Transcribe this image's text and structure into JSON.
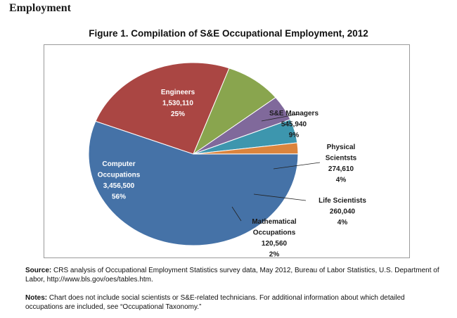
{
  "section_heading": "Employment",
  "source": {
    "label": "Source:",
    "text": "CRS analysis of Occupational Employment Statistics survey data, May 2012, Bureau of Labor Statistics, U.S. Department of Labor, http://www.bls.gov/oes/tables.htm."
  },
  "notes": {
    "label": "Notes:",
    "text": "Chart does not include social scientists or S&E-related technicians. For additional information about which detailed occupations are included, see “Occupational Taxonomy.”"
  },
  "chart_data": {
    "type": "pie",
    "title": "Figure 1. Compilation of S&E Occupational Employment, 2012",
    "slices": [
      {
        "label_lines": [
          "Engineers"
        ],
        "value": 1530110,
        "value_label": "1,530,110",
        "pct_label": "25%",
        "color": "#aa4643",
        "label_inside": true
      },
      {
        "label_lines": [
          "S&E Managers"
        ],
        "value": 545940,
        "value_label": "545,940",
        "pct_label": "9%",
        "color": "#89a54e",
        "label_inside": false
      },
      {
        "label_lines": [
          "Physical",
          "Scientsts"
        ],
        "value": 274610,
        "value_label": "274,610",
        "pct_label": "4%",
        "color": "#80699b",
        "label_inside": false
      },
      {
        "label_lines": [
          "Life Scientists"
        ],
        "value": 260040,
        "value_label": "260,040",
        "pct_label": "4%",
        "color": "#3d96ae",
        "label_inside": false
      },
      {
        "label_lines": [
          "Mathematical",
          "Occupations"
        ],
        "value": 120560,
        "value_label": "120,560",
        "pct_label": "2%",
        "color": "#db843d",
        "label_inside": false
      },
      {
        "label_lines": [
          "Computer",
          "Occupations"
        ],
        "value": 3456500,
        "value_label": "3,456,500",
        "pct_label": "56%",
        "color": "#4572a7",
        "label_inside": true
      }
    ],
    "start_angle_deg": -159,
    "legend": "none"
  }
}
